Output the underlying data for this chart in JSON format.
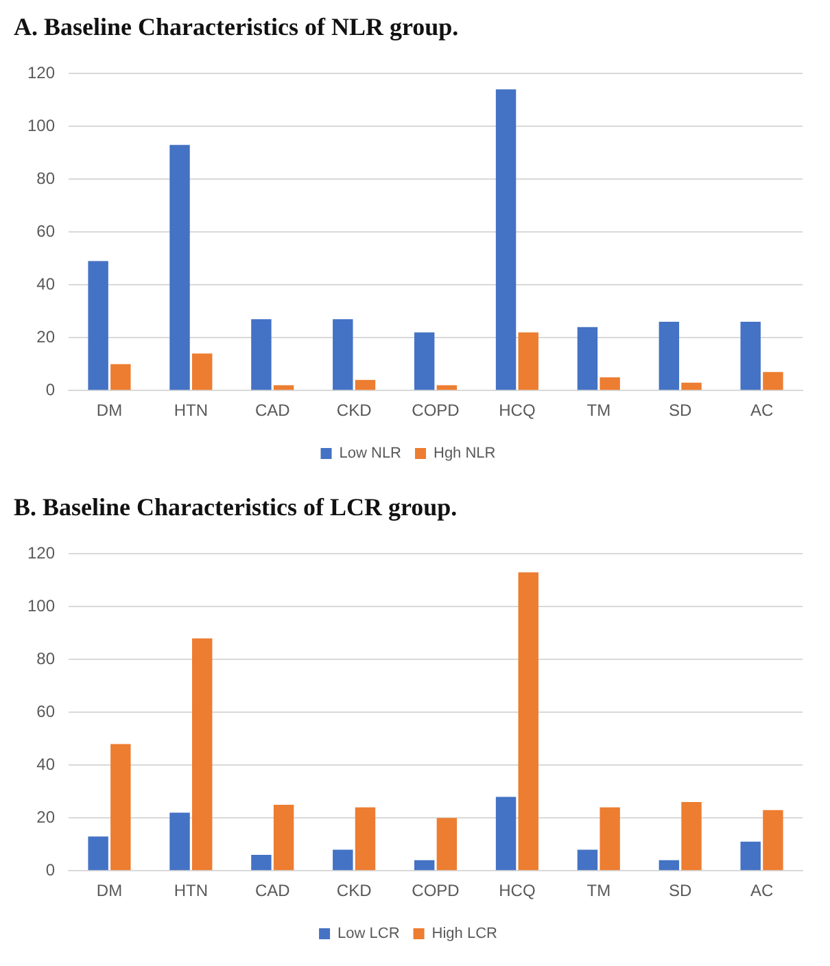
{
  "chart_data": [
    {
      "type": "bar",
      "title": "A. Baseline Characteristics of NLR group.",
      "categories": [
        "DM",
        "HTN",
        "CAD",
        "CKD",
        "COPD",
        "HCQ",
        "TM",
        "SD",
        "AC"
      ],
      "series": [
        {
          "name": "Low NLR",
          "color": "#4472c4",
          "values": [
            49,
            93,
            27,
            27,
            22,
            114,
            24,
            26,
            26
          ]
        },
        {
          "name": "Hgh NLR",
          "color": "#ed7d31",
          "values": [
            10,
            14,
            2,
            4,
            2,
            22,
            5,
            3,
            7
          ]
        }
      ],
      "ylim": [
        0,
        120
      ],
      "yticks": [
        0,
        20,
        40,
        60,
        80,
        100,
        120
      ],
      "grid": "y",
      "legend": "bottom"
    },
    {
      "type": "bar",
      "title": "B. Baseline Characteristics of LCR group.",
      "categories": [
        "DM",
        "HTN",
        "CAD",
        "CKD",
        "COPD",
        "HCQ",
        "TM",
        "SD",
        "AC"
      ],
      "series": [
        {
          "name": "Low LCR",
          "color": "#4472c4",
          "values": [
            13,
            22,
            6,
            8,
            4,
            28,
            8,
            4,
            11
          ]
        },
        {
          "name": "High LCR",
          "color": "#ed7d31",
          "values": [
            48,
            88,
            25,
            24,
            20,
            113,
            24,
            26,
            23
          ]
        }
      ],
      "ylim": [
        0,
        120
      ],
      "yticks": [
        0,
        20,
        40,
        60,
        80,
        100,
        120
      ],
      "grid": "y",
      "legend": "bottom"
    }
  ]
}
